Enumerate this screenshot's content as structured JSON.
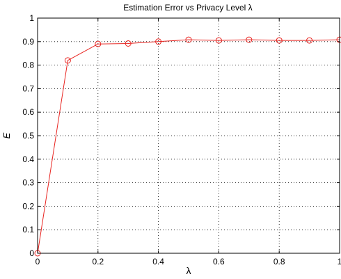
{
  "chart_data": {
    "type": "line",
    "title": "Estimation Error vs Privacy Level λ",
    "xlabel": "λ",
    "ylabel": "E",
    "xlim": [
      0,
      1
    ],
    "ylim": [
      0,
      1
    ],
    "xticks": [
      0,
      0.2,
      0.4,
      0.6,
      0.8,
      1
    ],
    "xtick_labels": [
      "0",
      "0.2",
      "0.4",
      "0.6",
      "0.8",
      "1"
    ],
    "yticks": [
      0,
      0.1,
      0.2,
      0.3,
      0.4,
      0.5,
      0.6,
      0.7,
      0.8,
      0.9,
      1
    ],
    "ytick_labels": [
      "0",
      "0.1",
      "0.2",
      "0.3",
      "0.4",
      "0.5",
      "0.6",
      "0.7",
      "0.8",
      "0.9",
      "1"
    ],
    "grid": true,
    "series": [
      {
        "color": "#e8231f",
        "marker": "circle",
        "x": [
          0,
          0.1,
          0.2,
          0.3,
          0.4,
          0.5,
          0.6,
          0.7,
          0.8,
          0.9,
          1.0
        ],
        "y": [
          0,
          0.82,
          0.89,
          0.892,
          0.9,
          0.908,
          0.905,
          0.908,
          0.905,
          0.905,
          0.908
        ]
      }
    ]
  }
}
